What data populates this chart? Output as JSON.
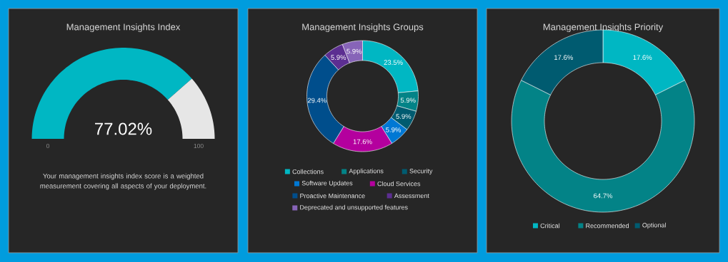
{
  "chart_data": [
    {
      "type": "donut",
      "title": "Management Insights Index",
      "categories": [
        null,
        null
      ],
      "values": [
        77.02,
        22.98
      ],
      "colors": [
        "#00b7c3",
        "#e6e6e6"
      ],
      "value_labels": [
        "77.02%",
        null
      ],
      "annotations": [
        "0",
        "100",
        "Your management insights index score is a weighted measurement covering all aspects of your deployment."
      ]
    },
    {
      "type": "donut",
      "title": "Management Insights Groups",
      "categories": [
        "Collections",
        "Applications",
        "Security",
        "Software Updates",
        "Cloud Services",
        "Proactive Maintenance",
        "Assessment",
        "Deprecated and unsupported features"
      ],
      "values": [
        23.5,
        5.9,
        5.9,
        5.9,
        17.6,
        29.4,
        5.9,
        5.9
      ],
      "colors": [
        "#00b7c3",
        "#038387",
        "#005b70",
        "#0078d4",
        "#b4009e",
        "#004e8c",
        "#5c2e91",
        "#8764b8"
      ],
      "value_labels": [
        "23.5%",
        "5.9%",
        "5.9%",
        "5.9%",
        "17.6%",
        "29.4%",
        "5.9%",
        "5.9%"
      ],
      "legend": "bottom"
    },
    {
      "type": "donut",
      "title": "Management Insights Priority",
      "categories": [
        "Critical",
        "Recommended",
        "Optional"
      ],
      "values": [
        17.6,
        64.7,
        17.6
      ],
      "colors": [
        "#00b7c3",
        "#038387",
        "#005b70"
      ],
      "value_labels": [
        "17.6%",
        "64.7%",
        "17.6%"
      ],
      "legend": "bottom"
    }
  ]
}
